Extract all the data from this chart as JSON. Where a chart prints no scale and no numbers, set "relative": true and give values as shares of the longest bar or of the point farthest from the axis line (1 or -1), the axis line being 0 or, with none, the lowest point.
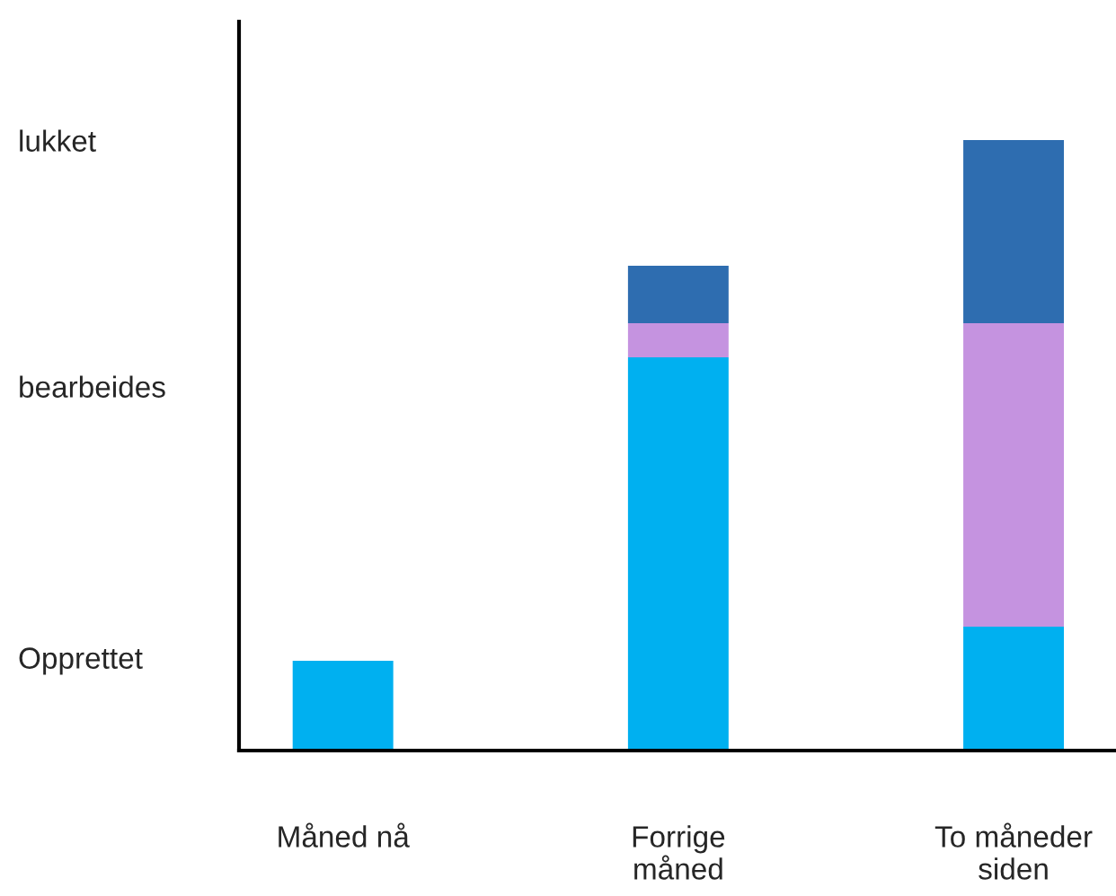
{
  "chart_data": {
    "type": "bar",
    "stacked": true,
    "relative": true,
    "categories": [
      "Måned nå",
      "Forrige\nmåned",
      "To måneder\nsiden"
    ],
    "series": [
      {
        "color": "#00b0f0",
        "values": [
          0.147,
          0.644,
          0.203
        ]
      },
      {
        "color": "#c593e0",
        "values": [
          0,
          0.056,
          0.497
        ]
      },
      {
        "color": "#2e6db0",
        "values": [
          0,
          0.094,
          0.3
        ]
      }
    ],
    "annotations": [
      "Opprettet",
      "bearbeides",
      "lukket"
    ],
    "grid": false,
    "legend": false
  }
}
